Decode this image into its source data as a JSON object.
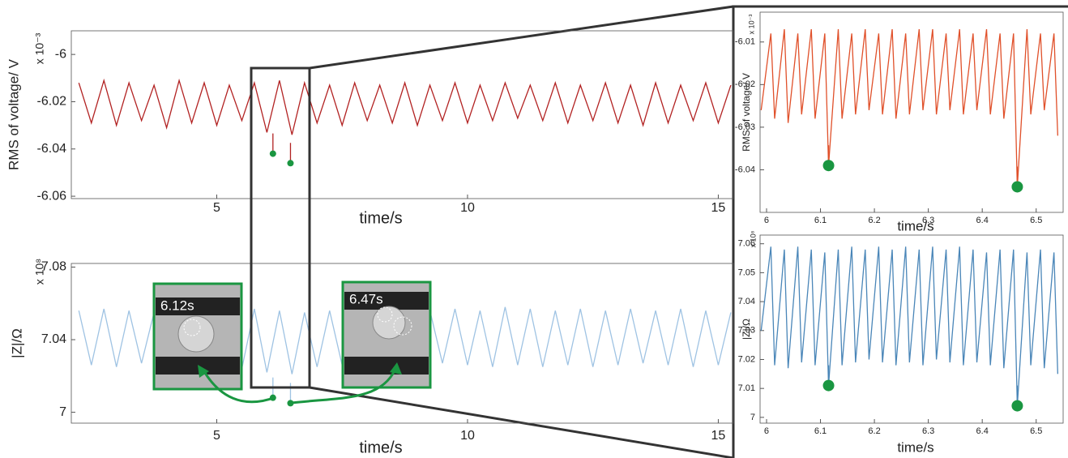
{
  "chart_data": [
    {
      "type": "line",
      "ylabel": "RMS of voltage/ V",
      "y_scale_label": "x 10⁻³",
      "xlabel": "time/s",
      "xlim": [
        2.1,
        15.3
      ],
      "xticks": [
        5,
        10,
        15
      ],
      "ylim": [
        -6.061,
        -5.99
      ],
      "yticks": [
        -6,
        -6.02,
        -6.04,
        -6.06
      ],
      "series": [
        {
          "color": "#b22222",
          "x": [
            2.25,
            2.5,
            2.75,
            3,
            3.25,
            3.5,
            3.75,
            4,
            4.25,
            4.5,
            4.75,
            5,
            5.25,
            5.5,
            5.75,
            6,
            6.25,
            6.5,
            6.75,
            7,
            7.25,
            7.5,
            7.75,
            8,
            8.25,
            8.5,
            8.75,
            9,
            9.25,
            9.5,
            9.75,
            10,
            10.25,
            10.5,
            10.75,
            11,
            11.25,
            11.5,
            11.75,
            12,
            12.25,
            12.5,
            12.75,
            13,
            13.25,
            13.5,
            13.75,
            14,
            14.25,
            14.5,
            14.75,
            15,
            15.25
          ],
          "values": [
            -6.012,
            -6.029,
            -6.011,
            -6.03,
            -6.012,
            -6.028,
            -6.013,
            -6.031,
            -6.011,
            -6.029,
            -6.012,
            -6.03,
            -6.013,
            -6.028,
            -6.012,
            -6.033,
            -6.011,
            -6.034,
            -6.012,
            -6.029,
            -6.013,
            -6.03,
            -6.012,
            -6.028,
            -6.013,
            -6.029,
            -6.012,
            -6.03,
            -6.013,
            -6.028,
            -6.012,
            -6.029,
            -6.013,
            -6.028,
            -6.012,
            -6.027,
            -6.013,
            -6.028,
            -6.012,
            -6.029,
            -6.013,
            -6.028,
            -6.012,
            -6.029,
            -6.013,
            -6.03,
            -6.012,
            -6.029,
            -6.013,
            -6.028,
            -6.012,
            -6.029,
            -6.013
          ]
        }
      ],
      "markers": {
        "color": "#1a9641",
        "x": [
          6.12,
          6.47
        ],
        "values": [
          -6.042,
          -6.046
        ]
      }
    },
    {
      "type": "line",
      "ylabel": "|Z|/Ω",
      "y_scale_label": "x 10⁸",
      "xlabel": "time/s",
      "xlim": [
        2.1,
        15.3
      ],
      "xticks": [
        5,
        10,
        15
      ],
      "ylim": [
        6.994,
        7.082
      ],
      "yticks": [
        7,
        7.04,
        7.08
      ],
      "series": [
        {
          "color": "#9fc3e3",
          "x": [
            2.25,
            2.5,
            2.75,
            3,
            3.25,
            3.5,
            3.75,
            4,
            4.25,
            4.5,
            4.75,
            5,
            5.25,
            5.5,
            5.75,
            6,
            6.25,
            6.5,
            6.75,
            7,
            7.25,
            7.5,
            7.75,
            8,
            8.25,
            8.5,
            8.75,
            9,
            9.25,
            9.5,
            9.75,
            10,
            10.25,
            10.5,
            10.75,
            11,
            11.25,
            11.5,
            11.75,
            12,
            12.25,
            12.5,
            12.75,
            13,
            13.25,
            13.5,
            13.75,
            14,
            14.25,
            14.5,
            14.75,
            15,
            15.25
          ],
          "values": [
            7.056,
            7.026,
            7.057,
            7.025,
            7.056,
            7.027,
            7.055,
            7.026,
            7.056,
            7.025,
            7.057,
            7.026,
            7.056,
            7.024,
            7.057,
            7.022,
            7.056,
            7.021,
            7.055,
            7.025,
            7.056,
            7.026,
            7.057,
            7.025,
            7.056,
            7.024,
            7.055,
            7.025,
            7.056,
            7.027,
            7.057,
            7.026,
            7.056,
            7.025,
            7.058,
            7.026,
            7.057,
            7.025,
            7.056,
            7.026,
            7.057,
            7.025,
            7.056,
            7.026,
            7.057,
            7.027,
            7.056,
            7.026,
            7.057,
            7.025,
            7.056,
            7.026,
            7.055
          ]
        }
      ],
      "markers": {
        "color": "#1a9641",
        "x": [
          6.12,
          6.47
        ],
        "values": [
          7.008,
          7.005
        ]
      },
      "annotations": [
        "6.12s",
        "6.47s"
      ]
    },
    {
      "type": "line",
      "ylabel": "RMS of voltage/ V",
      "y_scale_label": "x 10⁻³",
      "xlabel": "time/s",
      "xlim": [
        5.988,
        6.55
      ],
      "xticks": [
        6,
        6.1,
        6.2,
        6.3,
        6.4,
        6.5
      ],
      "ylim": [
        -6.05,
        -6.003
      ],
      "yticks": [
        -6.01,
        -6.02,
        -6.03,
        -6.04
      ],
      "series": [
        {
          "color": "#e0502a",
          "x": [
            5.99,
            6.008,
            6.015,
            6.033,
            6.04,
            6.058,
            6.065,
            6.083,
            6.09,
            6.108,
            6.115,
            6.133,
            6.14,
            6.158,
            6.165,
            6.183,
            6.19,
            6.208,
            6.215,
            6.233,
            6.24,
            6.258,
            6.265,
            6.283,
            6.29,
            6.308,
            6.315,
            6.333,
            6.34,
            6.358,
            6.365,
            6.383,
            6.39,
            6.408,
            6.415,
            6.433,
            6.44,
            6.458,
            6.465,
            6.483,
            6.49,
            6.508,
            6.515,
            6.533,
            6.54
          ],
          "values": [
            -6.026,
            -6.008,
            -6.028,
            -6.007,
            -6.029,
            -6.008,
            -6.027,
            -6.007,
            -6.028,
            -6.008,
            -6.039,
            -6.007,
            -6.028,
            -6.008,
            -6.027,
            -6.007,
            -6.026,
            -6.008,
            -6.027,
            -6.007,
            -6.028,
            -6.008,
            -6.027,
            -6.007,
            -6.026,
            -6.007,
            -6.027,
            -6.008,
            -6.026,
            -6.007,
            -6.027,
            -6.008,
            -6.026,
            -6.007,
            -6.027,
            -6.008,
            -6.028,
            -6.008,
            -6.044,
            -6.007,
            -6.027,
            -6.008,
            -6.026,
            -6.008,
            -6.032
          ]
        }
      ],
      "markers": {
        "color": "#1a9641",
        "x": [
          6.115,
          6.465
        ],
        "values": [
          -6.039,
          -6.044
        ]
      }
    },
    {
      "type": "line",
      "ylabel": "|Z|/Ω",
      "y_scale_label": "x 10⁸",
      "xlabel": "time/s",
      "xlim": [
        5.988,
        6.55
      ],
      "xticks": [
        6,
        6.1,
        6.2,
        6.3,
        6.4,
        6.5
      ],
      "ylim": [
        6.998,
        7.063
      ],
      "yticks": [
        7,
        7.01,
        7.02,
        7.03,
        7.04,
        7.05,
        7.06
      ],
      "series": [
        {
          "color": "#4a86b8",
          "x": [
            5.99,
            6.008,
            6.015,
            6.033,
            6.04,
            6.058,
            6.065,
            6.083,
            6.09,
            6.108,
            6.115,
            6.133,
            6.14,
            6.158,
            6.165,
            6.183,
            6.19,
            6.208,
            6.215,
            6.233,
            6.24,
            6.258,
            6.265,
            6.283,
            6.29,
            6.308,
            6.315,
            6.333,
            6.34,
            6.358,
            6.365,
            6.383,
            6.39,
            6.408,
            6.415,
            6.433,
            6.44,
            6.458,
            6.465,
            6.483,
            6.49,
            6.508,
            6.515,
            6.533,
            6.54
          ],
          "values": [
            7.03,
            7.059,
            7.018,
            7.058,
            7.017,
            7.059,
            7.019,
            7.058,
            7.018,
            7.057,
            7.011,
            7.058,
            7.018,
            7.059,
            7.019,
            7.058,
            7.02,
            7.059,
            7.019,
            7.058,
            7.018,
            7.059,
            7.019,
            7.058,
            7.018,
            7.059,
            7.02,
            7.058,
            7.019,
            7.059,
            7.018,
            7.058,
            7.019,
            7.057,
            7.018,
            7.058,
            7.017,
            7.058,
            7.004,
            7.057,
            7.018,
            7.058,
            7.017,
            7.057,
            7.015
          ]
        }
      ],
      "markers": {
        "color": "#1a9641",
        "x": [
          6.115,
          6.465
        ],
        "values": [
          7.011,
          7.004
        ]
      }
    }
  ]
}
